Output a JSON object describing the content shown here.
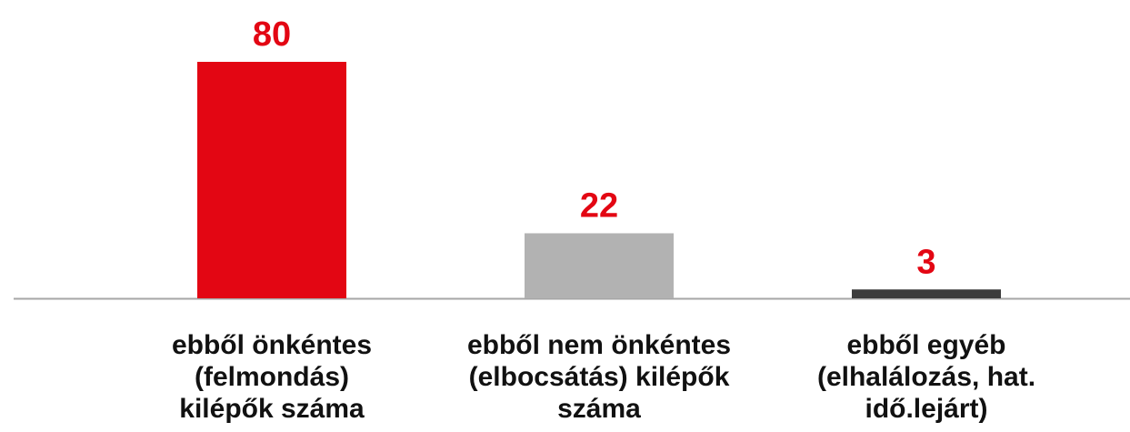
{
  "chart_data": {
    "type": "bar",
    "categories": [
      "ebből önkéntes\n(felmondás)\nkilépők száma",
      "ebből nem önkéntes\n(elbocsátás) kilépők\nszáma",
      "ebből egyéb\n(elhalálozás, hat.\nidő.lejárt)"
    ],
    "values": [
      80,
      22,
      3
    ],
    "colors": [
      "#e30613",
      "#b2b2b2",
      "#3c3c3c"
    ],
    "value_label_color": "#e30613"
  }
}
